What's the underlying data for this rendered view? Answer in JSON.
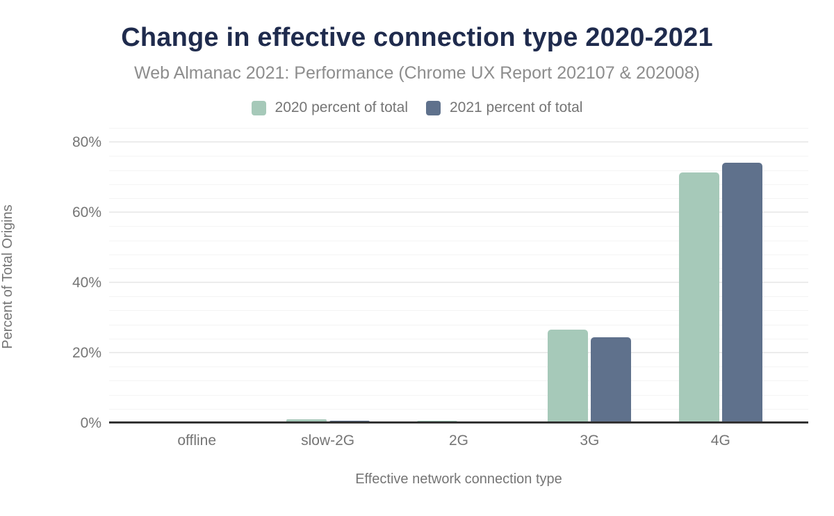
{
  "chart_data": {
    "type": "bar",
    "title": "Change in effective connection type 2020-2021",
    "subtitle": "Web Almanac 2021: Performance (Chrome UX Report 202107 & 202008)",
    "categories": [
      "offline",
      "slow-2G",
      "2G",
      "3G",
      "4G"
    ],
    "series": [
      {
        "name": "2020 percent of total",
        "color": "#a6c9b9",
        "values": [
          0.0,
          1.0,
          0.6,
          26.5,
          71.3
        ]
      },
      {
        "name": "2021 percent of total",
        "color": "#5f718c",
        "values": [
          0.0,
          0.6,
          0.1,
          24.4,
          74.1
        ]
      }
    ],
    "xlabel": "Effective network connection type",
    "ylabel": "Percent of Total Origins",
    "ylim": [
      0,
      84
    ],
    "yticks": [
      0,
      20,
      40,
      60,
      80
    ],
    "ytick_labels": [
      "0%",
      "20%",
      "40%",
      "60%",
      "80%"
    ],
    "minor_grid_step": 4,
    "major_grid_step": 20,
    "grid": true,
    "legend_position": "top",
    "colors": {
      "title": "#1f2b4d",
      "subtitle": "#8d8d8d",
      "labels": "#757575",
      "axis_line": "#333333",
      "grid_major": "#ececec",
      "grid_minor": "#f4f4f4",
      "background": "#ffffff"
    }
  }
}
